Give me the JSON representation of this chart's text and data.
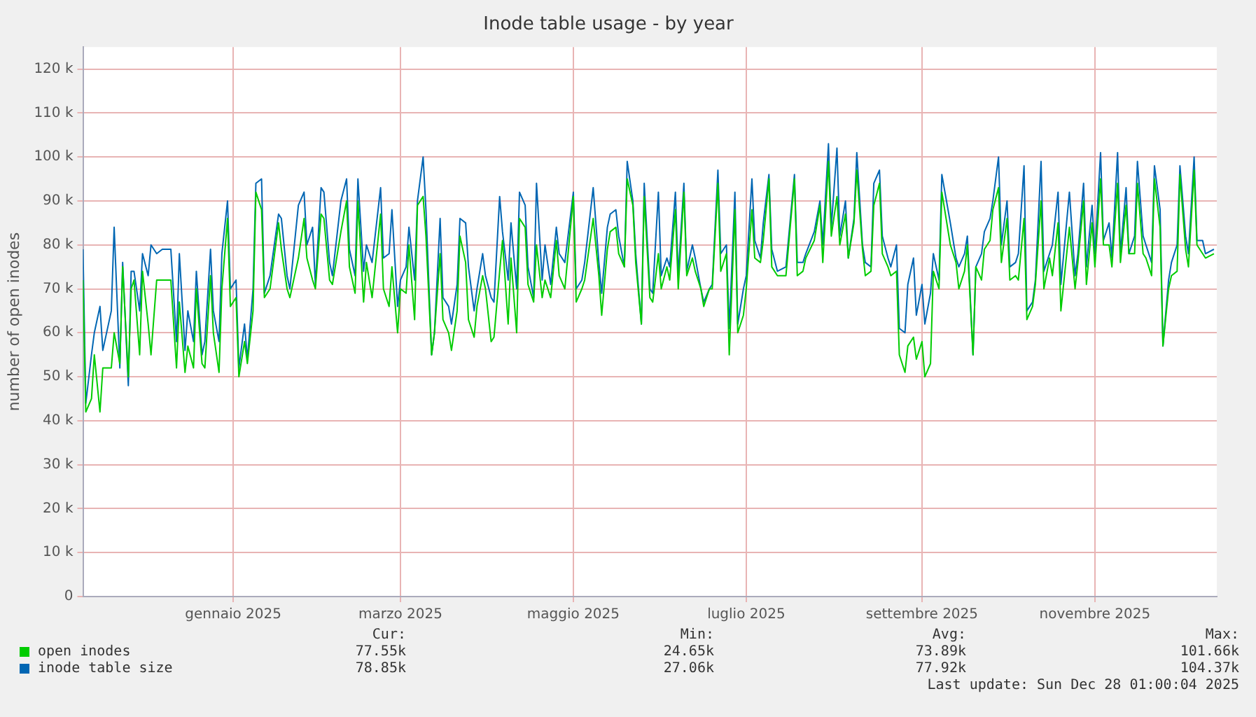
{
  "chart_data": {
    "type": "line",
    "title": "Inode table usage - by year",
    "ylabel": "number of open inodes",
    "x": [
      "2024-11-23",
      "2024-11-24",
      "2024-11-26",
      "2024-11-27",
      "2024-11-29",
      "2024-11-30",
      "2024-12-03",
      "2024-12-04",
      "2024-12-06",
      "2024-12-07",
      "2024-12-09",
      "2024-12-10",
      "2024-12-11",
      "2024-12-13",
      "2024-12-14",
      "2024-12-16",
      "2024-12-17",
      "2024-12-19",
      "2024-12-21",
      "2024-12-24",
      "2024-12-26",
      "2024-12-27",
      "2024-12-29",
      "2024-12-30",
      "2025-01-01",
      "2025-01-02",
      "2025-01-04",
      "2025-01-05",
      "2025-01-07",
      "2025-01-08",
      "2025-01-10",
      "2025-01-11",
      "2025-01-13",
      "2025-01-14",
      "2025-01-16",
      "2025-01-17",
      "2025-01-19",
      "2025-01-20",
      "2025-01-22",
      "2025-01-23",
      "2025-01-25",
      "2025-01-26",
      "2025-01-28",
      "2025-01-31",
      "2025-02-01",
      "2025-02-03",
      "2025-02-04",
      "2025-02-07",
      "2025-02-09",
      "2025-02-10",
      "2025-02-12",
      "2025-02-13",
      "2025-02-15",
      "2025-02-16",
      "2025-02-18",
      "2025-02-19",
      "2025-02-22",
      "2025-02-24",
      "2025-02-25",
      "2025-02-27",
      "2025-02-28",
      "2025-03-02",
      "2025-03-03",
      "2025-03-05",
      "2025-03-08",
      "2025-03-09",
      "2025-03-11",
      "2025-03-12",
      "2025-03-14",
      "2025-03-15",
      "2025-03-17",
      "2025-03-18",
      "2025-03-20",
      "2025-03-21",
      "2025-03-23",
      "2025-03-24",
      "2025-03-26",
      "2025-03-27",
      "2025-03-29",
      "2025-03-30",
      "2025-04-01",
      "2025-04-02",
      "2025-04-04",
      "2025-04-05",
      "2025-04-07",
      "2025-04-08",
      "2025-04-10",
      "2025-04-11",
      "2025-04-13",
      "2025-04-14",
      "2025-04-16",
      "2025-04-17",
      "2025-04-19",
      "2025-04-20",
      "2025-04-22",
      "2025-04-23",
      "2025-04-25",
      "2025-04-26",
      "2025-04-28",
      "2025-04-29",
      "2025-05-01",
      "2025-05-02",
      "2025-05-04",
      "2025-05-05",
      "2025-05-07",
      "2025-05-09",
      "2025-05-10",
      "2025-05-12",
      "2025-05-15",
      "2025-05-16",
      "2025-05-18",
      "2025-05-19",
      "2025-05-22",
      "2025-05-24",
      "2025-05-25",
      "2025-05-27",
      "2025-05-28",
      "2025-05-30",
      "2025-05-31",
      "2025-06-02",
      "2025-06-03",
      "2025-06-05",
      "2025-06-06",
      "2025-06-08",
      "2025-06-09",
      "2025-06-11",
      "2025-06-12",
      "2025-06-14",
      "2025-06-15",
      "2025-06-17",
      "2025-06-18",
      "2025-06-20",
      "2025-06-21",
      "2025-06-23",
      "2025-06-24",
      "2025-06-26",
      "2025-06-27",
      "2025-06-29",
      "2025-06-30",
      "2025-07-02",
      "2025-07-03",
      "2025-07-05",
      "2025-07-06",
      "2025-07-08",
      "2025-07-09",
      "2025-07-11",
      "2025-07-12",
      "2025-07-14",
      "2025-07-15",
      "2025-07-17",
      "2025-07-18",
      "2025-07-20",
      "2025-07-21",
      "2025-07-23",
      "2025-07-24",
      "2025-07-26",
      "2025-07-29",
      "2025-08-01",
      "2025-08-02",
      "2025-08-04",
      "2025-08-05",
      "2025-08-08",
      "2025-08-10",
      "2025-08-11",
      "2025-08-13",
      "2025-08-14",
      "2025-08-16",
      "2025-08-17",
      "2025-08-19",
      "2025-08-20",
      "2025-08-22",
      "2025-08-23",
      "2025-08-25",
      "2025-08-26",
      "2025-08-28",
      "2025-08-29",
      "2025-08-31",
      "2025-09-01",
      "2025-09-03",
      "2025-09-04",
      "2025-09-06",
      "2025-09-07",
      "2025-09-09",
      "2025-09-10",
      "2025-09-12",
      "2025-09-13",
      "2025-09-15",
      "2025-09-16",
      "2025-09-18",
      "2025-09-19",
      "2025-09-21",
      "2025-09-22",
      "2025-09-25",
      "2025-09-27",
      "2025-09-28",
      "2025-09-30",
      "2025-10-01",
      "2025-10-03",
      "2025-10-04",
      "2025-10-06",
      "2025-10-07",
      "2025-10-09",
      "2025-10-10",
      "2025-10-12",
      "2025-10-13",
      "2025-10-15",
      "2025-10-16",
      "2025-10-18",
      "2025-10-19",
      "2025-10-21",
      "2025-10-22",
      "2025-10-24",
      "2025-10-25",
      "2025-10-27",
      "2025-10-28",
      "2025-10-30",
      "2025-10-31",
      "2025-11-02",
      "2025-11-03",
      "2025-11-06",
      "2025-11-08",
      "2025-11-09",
      "2025-11-11",
      "2025-11-12",
      "2025-11-14",
      "2025-11-15",
      "2025-11-17",
      "2025-11-18",
      "2025-11-20",
      "2025-11-21",
      "2025-11-23",
      "2025-11-24",
      "2025-11-26",
      "2025-11-27",
      "2025-11-29",
      "2025-11-30",
      "2025-12-02",
      "2025-12-03",
      "2025-12-05",
      "2025-12-06",
      "2025-12-08",
      "2025-12-09",
      "2025-12-11",
      "2025-12-12",
      "2025-12-14",
      "2025-12-15",
      "2025-12-17",
      "2025-12-18",
      "2025-12-20",
      "2025-12-21",
      "2025-12-23",
      "2025-12-24",
      "2025-12-27"
    ],
    "series": [
      {
        "name": "open inodes",
        "color": "#00cc00",
        "values": [
          72,
          42,
          45,
          55,
          42,
          52,
          52,
          60,
          53,
          75,
          50,
          70,
          72,
          55,
          74,
          62,
          55,
          72,
          72,
          72,
          52,
          67,
          51,
          57,
          52,
          70,
          53,
          52,
          73,
          60,
          51,
          70,
          86,
          66,
          68,
          50,
          58,
          53,
          65,
          92,
          88,
          68,
          70,
          85,
          79,
          70,
          68,
          77,
          86,
          77,
          72,
          70,
          87,
          86,
          72,
          71,
          83,
          90,
          75,
          69,
          90,
          67,
          76,
          68,
          87,
          70,
          66,
          75,
          60,
          70,
          69,
          80,
          63,
          89,
          91,
          82,
          55,
          60,
          78,
          63,
          60,
          56,
          65,
          82,
          76,
          63,
          59,
          66,
          73,
          70,
          58,
          59,
          74,
          81,
          62,
          77,
          60,
          86,
          84,
          71,
          67,
          80,
          68,
          72,
          68,
          81,
          73,
          70,
          91,
          67,
          70,
          72,
          86,
          73,
          64,
          79,
          83,
          84,
          78,
          75,
          95,
          89,
          76,
          62,
          91,
          68,
          67,
          78,
          70,
          75,
          72,
          88,
          70,
          92,
          73,
          77,
          74,
          70,
          66,
          70,
          70,
          94,
          74,
          78,
          55,
          88,
          60,
          64,
          70,
          88,
          77,
          76,
          81,
          95,
          75,
          73,
          73,
          95,
          73,
          74,
          77,
          81,
          89,
          76,
          99,
          82,
          91,
          80,
          87,
          77,
          85,
          97,
          79,
          73,
          74,
          89,
          94,
          78,
          75,
          73,
          74,
          55,
          51,
          57,
          59,
          54,
          58,
          50,
          53,
          74,
          70,
          92,
          80,
          76,
          70,
          74,
          80,
          55,
          75,
          72,
          79,
          81,
          88,
          93,
          76,
          86,
          72,
          73,
          72,
          86,
          63,
          66,
          71,
          90,
          70,
          77,
          73,
          85,
          65,
          84,
          70,
          76,
          90,
          71,
          85,
          75,
          95,
          80,
          80,
          75,
          94,
          76,
          89,
          78,
          78,
          94,
          78,
          77,
          73,
          95,
          84,
          57,
          70,
          73,
          74,
          96,
          79,
          75,
          97,
          80,
          78,
          77,
          78
        ]
      },
      {
        "name": "inode table size",
        "color": "#0066b3",
        "values": [
          79,
          44,
          55,
          60,
          66,
          56,
          65,
          84,
          52,
          76,
          48,
          74,
          74,
          65,
          78,
          73,
          80,
          78,
          79,
          79,
          58,
          78,
          56,
          65,
          58,
          74,
          55,
          58,
          79,
          65,
          58,
          78,
          90,
          70,
          72,
          52,
          62,
          54,
          70,
          94,
          95,
          69,
          73,
          87,
          86,
          73,
          70,
          89,
          92,
          80,
          84,
          71,
          93,
          92,
          76,
          73,
          90,
          95,
          79,
          73,
          95,
          74,
          80,
          76,
          93,
          77,
          78,
          88,
          66,
          72,
          75,
          84,
          72,
          90,
          100,
          88,
          55,
          60,
          86,
          68,
          66,
          62,
          71,
          86,
          85,
          75,
          65,
          70,
          78,
          73,
          68,
          67,
          91,
          83,
          72,
          85,
          70,
          92,
          89,
          75,
          68,
          94,
          72,
          80,
          71,
          84,
          78,
          76,
          92,
          70,
          72,
          76,
          93,
          76,
          69,
          84,
          87,
          88,
          82,
          75,
          99,
          90,
          78,
          62,
          94,
          70,
          69,
          92,
          73,
          77,
          75,
          92,
          73,
          94,
          74,
          80,
          77,
          70,
          67,
          70,
          71,
          97,
          78,
          80,
          61,
          92,
          62,
          70,
          73,
          95,
          81,
          77,
          85,
          96,
          79,
          74,
          75,
          96,
          76,
          76,
          78,
          83,
          90,
          80,
          103,
          84,
          102,
          82,
          90,
          77,
          86,
          101,
          80,
          76,
          75,
          94,
          97,
          82,
          77,
          75,
          80,
          61,
          60,
          71,
          77,
          64,
          71,
          62,
          69,
          78,
          72,
          96,
          85,
          77,
          75,
          78,
          82,
          55,
          75,
          78,
          83,
          86,
          90,
          100,
          80,
          90,
          75,
          76,
          78,
          98,
          65,
          67,
          72,
          99,
          74,
          78,
          80,
          92,
          71,
          92,
          73,
          78,
          94,
          75,
          89,
          78,
          101,
          81,
          85,
          77,
          101,
          78,
          93,
          78,
          82,
          99,
          82,
          80,
          76,
          98,
          88,
          57,
          72,
          76,
          80,
          98,
          82,
          78,
          100,
          81,
          81,
          78,
          79
        ]
      }
    ],
    "xlim": [
      "2024-11-23",
      "2025-12-28"
    ],
    "xticks": [
      {
        "value": "2025-01-15",
        "label": "gennaio 2025"
      },
      {
        "value": "2025-03-15",
        "label": "marzo 2025"
      },
      {
        "value": "2025-05-15",
        "label": "maggio 2025"
      },
      {
        "value": "2025-07-15",
        "label": "luglio 2025"
      },
      {
        "value": "2025-09-15",
        "label": "settembre 2025"
      },
      {
        "value": "2025-11-15",
        "label": "novembre 2025"
      }
    ],
    "ylim": [
      0,
      125
    ],
    "yticks": [
      0,
      {
        "value": 10,
        "label": "10 k"
      },
      {
        "value": 20,
        "label": "20 k"
      },
      {
        "value": 30,
        "label": "30 k"
      },
      {
        "value": 40,
        "label": "40 k"
      },
      {
        "value": 50,
        "label": "50 k"
      },
      {
        "value": 60,
        "label": "60 k"
      },
      {
        "value": 70,
        "label": "70 k"
      },
      {
        "value": 80,
        "label": "80 k"
      },
      {
        "value": 90,
        "label": "90 k"
      },
      {
        "value": 100,
        "label": "100 k"
      },
      {
        "value": 110,
        "label": "110 k"
      },
      {
        "value": 120,
        "label": "120 k"
      }
    ],
    "grid": true,
    "legend": "bottom",
    "marker": "none",
    "line_style": "solid",
    "annotations": [
      "Cur:",
      "Min:",
      "Avg:",
      "Max:",
      "77.55k",
      "24.65k",
      "73.89k",
      "101.66k",
      "78.85k",
      "27.06k",
      "77.92k",
      "104.37k",
      "Last update: Sun Dec 28 01:00:04 2025"
    ]
  }
}
